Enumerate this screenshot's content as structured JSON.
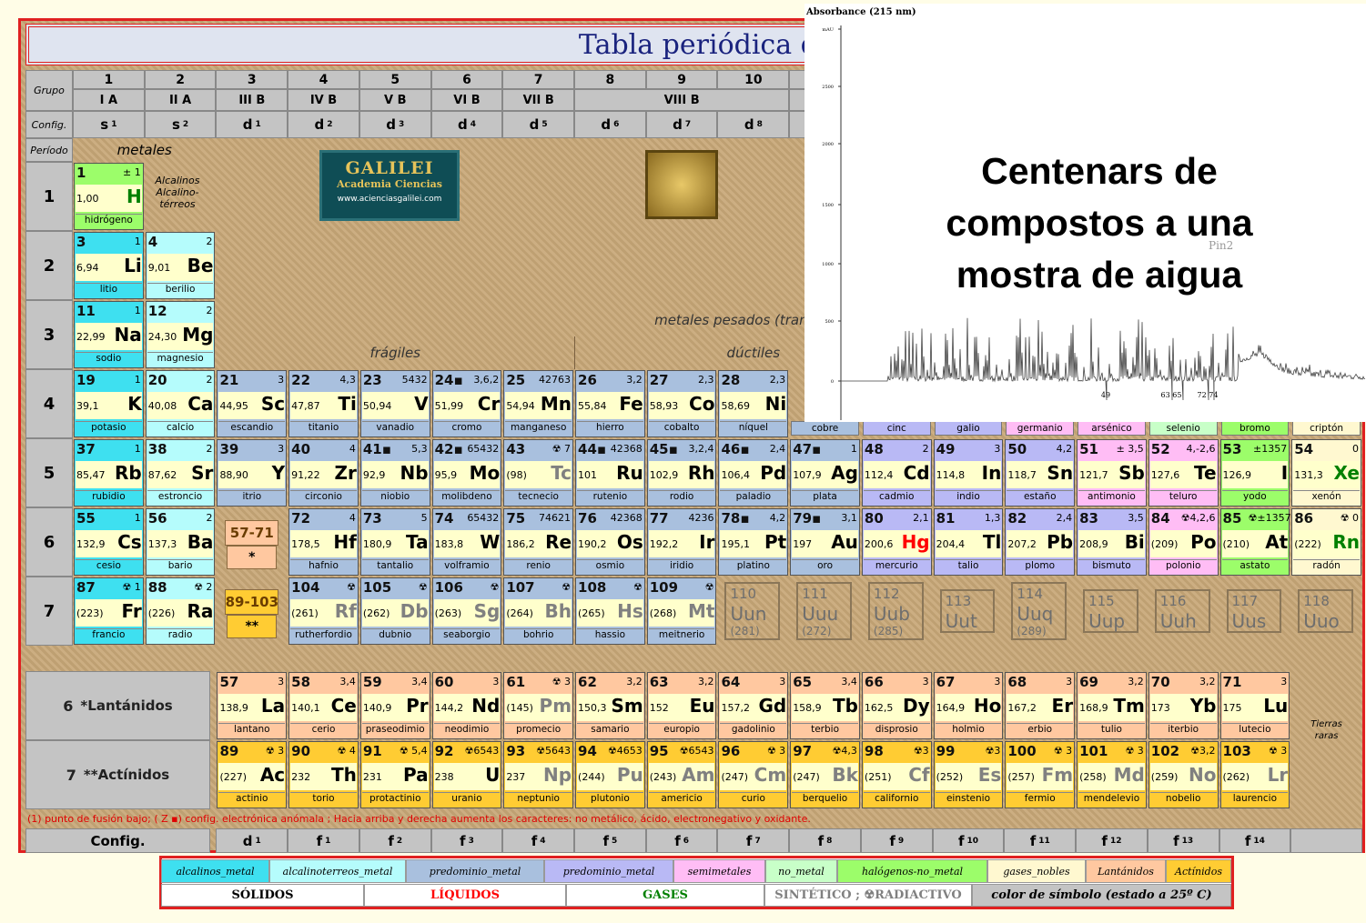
{
  "title": "Tabla periódica de los el",
  "header": {
    "grupo": "Grupo",
    "config": "Config.",
    "periodo": "Período",
    "metales": "metales",
    "groups": [
      1,
      2,
      3,
      4,
      5,
      6,
      7,
      8,
      9,
      10
    ],
    "subgroups": [
      "I A",
      "II A",
      "III B",
      "IV B",
      "V B",
      "VI B",
      "VII B",
      "VIII B"
    ],
    "configs": [
      {
        "l": "s",
        "e": "1"
      },
      {
        "l": "s",
        "e": "2"
      },
      {
        "l": "d",
        "e": "1"
      },
      {
        "l": "d",
        "e": "2"
      },
      {
        "l": "d",
        "e": "3"
      },
      {
        "l": "d",
        "e": "4"
      },
      {
        "l": "d",
        "e": "5"
      },
      {
        "l": "d",
        "e": "6"
      },
      {
        "l": "d",
        "e": "7"
      },
      {
        "l": "d",
        "e": "8"
      }
    ]
  },
  "notes": {
    "alcalinos": [
      "Alcalinos",
      "Alcalino-",
      "térreos"
    ],
    "heavy": "metales pesados (transición)",
    "fragiles": "frágiles",
    "ductiles": "dúctiles",
    "tierras": [
      "Tierras",
      "raras"
    ]
  },
  "logo": {
    "name": "GALILEI",
    "subtitle": "Academia Ciencias",
    "url": "www.acienciasgalilei.com"
  },
  "periods": [
    {
      "label": "1",
      "cells": [
        {
          "z": "1",
          "v": "± 1",
          "m": "1,00",
          "s": "H",
          "n": "hidrógeno",
          "c": 6,
          "st": 2
        }
      ]
    },
    {
      "label": "2",
      "cells": [
        {
          "z": "3",
          "v": "1",
          "m": "6,94",
          "s": "Li",
          "n": "litio",
          "c": 0
        },
        {
          "z": "4",
          "v": "2",
          "m": "9,01",
          "s": "Be",
          "n": "berilio",
          "c": 1
        }
      ]
    },
    {
      "label": "3",
      "cells": [
        {
          "z": "11",
          "v": "1",
          "m": "22,99",
          "s": "Na",
          "n": "sodio",
          "c": 0
        },
        {
          "z": "12",
          "v": "2",
          "m": "24,30",
          "s": "Mg",
          "n": "magnesio",
          "c": 1
        }
      ]
    },
    {
      "label": "4",
      "cells": [
        {
          "z": "19",
          "v": "1",
          "m": "39,1",
          "s": "K",
          "n": "potasio",
          "c": 0
        },
        {
          "z": "20",
          "v": "2",
          "m": "40,08",
          "s": "Ca",
          "n": "calcio",
          "c": 1
        },
        {
          "z": "21",
          "v": "3",
          "m": "44,95",
          "s": "Sc",
          "n": "escandio",
          "c": 2
        },
        {
          "z": "22",
          "v": "4,3",
          "m": "47,87",
          "s": "Ti",
          "n": "titanio",
          "c": 2
        },
        {
          "z": "23",
          "v": "5432",
          "m": "50,94",
          "s": "V",
          "n": "vanadio",
          "c": 2
        },
        {
          "z": "24▪",
          "v": "3,6,2",
          "m": "51,99",
          "s": "Cr",
          "n": "cromo",
          "c": 2
        },
        {
          "z": "25",
          "v": "42763",
          "m": "54,94",
          "s": "Mn",
          "n": "manganeso",
          "c": 2
        },
        {
          "z": "26",
          "v": "3,2",
          "m": "55,84",
          "s": "Fe",
          "n": "hierro",
          "c": 2
        },
        {
          "z": "27",
          "v": "2,3",
          "m": "58,93",
          "s": "Co",
          "n": "cobalto",
          "c": 2
        },
        {
          "z": "28",
          "v": "2,3",
          "m": "58,69",
          "s": "Ni",
          "n": "níquel",
          "c": 2
        },
        {
          "n": "cobre",
          "c": 2
        },
        {
          "n": "cinc",
          "c": 3
        },
        {
          "n": "galio",
          "c": 3
        },
        {
          "n": "germanio",
          "c": 4
        },
        {
          "n": "arsénico",
          "c": 4
        },
        {
          "n": "selenio",
          "c": 5
        },
        {
          "n": "bromo",
          "c": 6
        },
        {
          "n": "criptón",
          "c": 7
        }
      ]
    },
    {
      "label": "5",
      "cells": [
        {
          "z": "37",
          "v": "1",
          "m": "85,47",
          "s": "Rb",
          "n": "rubidio",
          "c": 0
        },
        {
          "z": "38",
          "v": "2",
          "m": "87,62",
          "s": "Sr",
          "n": "estroncio",
          "c": 1
        },
        {
          "z": "39",
          "v": "3",
          "m": "88,90",
          "s": "Y",
          "n": "itrio",
          "c": 2
        },
        {
          "z": "40",
          "v": "4",
          "m": "91,22",
          "s": "Zr",
          "n": "circonio",
          "c": 2
        },
        {
          "z": "41▪",
          "v": "5,3",
          "m": "92,9",
          "s": "Nb",
          "n": "niobio",
          "c": 2
        },
        {
          "z": "42▪",
          "v": "65432",
          "m": "95,9",
          "s": "Mo",
          "n": "molibdeno",
          "c": 2
        },
        {
          "z": "43",
          "v": "☢ 7",
          "m": "(98)",
          "s": "Tc",
          "n": "tecnecio",
          "c": 2,
          "st": 3
        },
        {
          "z": "44▪",
          "v": "42368",
          "m": "101",
          "s": "Ru",
          "n": "rutenio",
          "c": 2
        },
        {
          "z": "45▪",
          "v": "3,2,4",
          "m": "102,9",
          "s": "Rh",
          "n": "rodio",
          "c": 2
        },
        {
          "z": "46▪",
          "v": "2,4",
          "m": "106,4",
          "s": "Pd",
          "n": "paladio",
          "c": 2
        },
        {
          "z": "47▪",
          "v": "1",
          "m": "107,9",
          "s": "Ag",
          "n": "plata",
          "c": 2
        },
        {
          "z": "48",
          "v": "2",
          "m": "112,4",
          "s": "Cd",
          "n": "cadmio",
          "c": 3
        },
        {
          "z": "49",
          "v": "3",
          "m": "114,8",
          "s": "In",
          "n": "indio",
          "c": 3
        },
        {
          "z": "50",
          "v": "4,2",
          "m": "118,7",
          "s": "Sn",
          "n": "estaño",
          "c": 3
        },
        {
          "z": "51",
          "v": "± 3,5",
          "m": "121,7",
          "s": "Sb",
          "n": "antimonio",
          "c": 4
        },
        {
          "z": "52",
          "v": "4,-2,6",
          "m": "127,6",
          "s": "Te",
          "n": "teluro",
          "c": 4
        },
        {
          "z": "53",
          "v": "±1357",
          "m": "126,9",
          "s": "I",
          "n": "yodo",
          "c": 6
        },
        {
          "z": "54",
          "v": "0",
          "m": "131,3",
          "s": "Xe",
          "n": "xenón",
          "c": 7,
          "st": 2
        }
      ]
    },
    {
      "label": "6",
      "cells": [
        {
          "z": "55",
          "v": "1",
          "m": "132,9",
          "s": "Cs",
          "n": "cesio",
          "c": 0
        },
        {
          "z": "56",
          "v": "2",
          "m": "137,3",
          "s": "Ba",
          "n": "bario",
          "c": 1
        },
        {
          "range": "57-71",
          "mark": "*"
        },
        {
          "z": "72",
          "v": "4",
          "m": "178,5",
          "s": "Hf",
          "n": "hafnio",
          "c": 2
        },
        {
          "z": "73",
          "v": "5",
          "m": "180,9",
          "s": "Ta",
          "n": "tantalio",
          "c": 2
        },
        {
          "z": "74",
          "v": "65432",
          "m": "183,8",
          "s": "W",
          "n": "volframio",
          "c": 2
        },
        {
          "z": "75",
          "v": "74621",
          "m": "186,2",
          "s": "Re",
          "n": "renio",
          "c": 2
        },
        {
          "z": "76",
          "v": "42368",
          "m": "190,2",
          "s": "Os",
          "n": "osmio",
          "c": 2
        },
        {
          "z": "77",
          "v": "4236",
          "m": "192,2",
          "s": "Ir",
          "n": "iridio",
          "c": 2
        },
        {
          "z": "78▪",
          "v": "4,2",
          "m": "195,1",
          "s": "Pt",
          "n": "platino",
          "c": 2
        },
        {
          "z": "79▪",
          "v": "3,1",
          "m": "197",
          "s": "Au",
          "n": "oro",
          "c": 2
        },
        {
          "z": "80",
          "v": "2,1",
          "m": "200,6",
          "s": "Hg",
          "n": "mercurio",
          "c": 3,
          "st": 1
        },
        {
          "z": "81",
          "v": "1,3",
          "m": "204,4",
          "s": "Tl",
          "n": "talio",
          "c": 3
        },
        {
          "z": "82",
          "v": "2,4",
          "m": "207,2",
          "s": "Pb",
          "n": "plomo",
          "c": 3
        },
        {
          "z": "83",
          "v": "3,5",
          "m": "208,9",
          "s": "Bi",
          "n": "bismuto",
          "c": 3
        },
        {
          "z": "84",
          "v": "☢4,2,6",
          "m": "(209)",
          "s": "Po",
          "n": "polonio",
          "c": 4
        },
        {
          "z": "85",
          "v": "☢±1357",
          "m": "(210)",
          "s": "At",
          "n": "astato",
          "c": 6
        },
        {
          "z": "86",
          "v": "☢ 0",
          "m": "(222)",
          "s": "Rn",
          "n": "radón",
          "c": 7,
          "st": 2
        }
      ]
    },
    {
      "label": "7",
      "cells": [
        {
          "z": "87",
          "v": "☢ 1",
          "m": "(223)",
          "s": "Fr",
          "n": "francio",
          "c": 0
        },
        {
          "z": "88",
          "v": "☢ 2",
          "m": "(226)",
          "s": "Ra",
          "n": "radio",
          "c": 1
        },
        {
          "range": "89-103",
          "mark": "**"
        },
        {
          "z": "104",
          "v": "☢",
          "m": "(261)",
          "s": "Rf",
          "n": "rutherfordio",
          "c": 2,
          "st": 3
        },
        {
          "z": "105",
          "v": "☢",
          "m": "(262)",
          "s": "Db",
          "n": "dubnio",
          "c": 2,
          "st": 3
        },
        {
          "z": "106",
          "v": "☢",
          "m": "(263)",
          "s": "Sg",
          "n": "seaborgio",
          "c": 2,
          "st": 3
        },
        {
          "z": "107",
          "v": "☢",
          "m": "(264)",
          "s": "Bh",
          "n": "bohrio",
          "c": 2,
          "st": 3
        },
        {
          "z": "108",
          "v": "☢",
          "m": "(265)",
          "s": "Hs",
          "n": "hassio",
          "c": 2,
          "st": 3
        },
        {
          "z": "109",
          "v": "☢",
          "m": "(268)",
          "s": "Mt",
          "n": "meitnerio",
          "c": 2,
          "st": 3
        },
        {
          "z": "110",
          "s": "Uun",
          "m": "(281)"
        },
        {
          "z": "111",
          "s": "Uuu",
          "m": "(272)"
        },
        {
          "z": "112",
          "s": "Uub",
          "m": "(285)"
        },
        {
          "z": "113",
          "s": "Uut"
        },
        {
          "z": "114",
          "s": "Uuq",
          "m": "(289)"
        },
        {
          "z": "115",
          "s": "Uup"
        },
        {
          "z": "116",
          "s": "Uuh"
        },
        {
          "z": "117",
          "s": "Uus"
        },
        {
          "z": "118",
          "s": "Uuo"
        }
      ]
    }
  ],
  "series": [
    {
      "num": "6",
      "label": "*Lantánidos",
      "cells": [
        {
          "z": "57",
          "v": "3",
          "m": "138,9",
          "s": "La",
          "n": "lantano",
          "c": 8
        },
        {
          "z": "58",
          "v": "3,4",
          "m": "140,1",
          "s": "Ce",
          "n": "cerio",
          "c": 8
        },
        {
          "z": "59",
          "v": "3,4",
          "m": "140,9",
          "s": "Pr",
          "n": "praseodimio",
          "c": 8
        },
        {
          "z": "60",
          "v": "3",
          "m": "144,2",
          "s": "Nd",
          "n": "neodimio",
          "c": 8
        },
        {
          "z": "61",
          "v": "☢ 3",
          "m": "(145)",
          "s": "Pm",
          "n": "promecio",
          "c": 8,
          "st": 3
        },
        {
          "z": "62",
          "v": "3,2",
          "m": "150,3",
          "s": "Sm",
          "n": "samario",
          "c": 8
        },
        {
          "z": "63",
          "v": "3,2",
          "m": "152",
          "s": "Eu",
          "n": "europio",
          "c": 8
        },
        {
          "z": "64",
          "v": "3",
          "m": "157,2",
          "s": "Gd",
          "n": "gadolinio",
          "c": 8
        },
        {
          "z": "65",
          "v": "3,4",
          "m": "158,9",
          "s": "Tb",
          "n": "terbio",
          "c": 8
        },
        {
          "z": "66",
          "v": "3",
          "m": "162,5",
          "s": "Dy",
          "n": "disprosio",
          "c": 8
        },
        {
          "z": "67",
          "v": "3",
          "m": "164,9",
          "s": "Ho",
          "n": "holmio",
          "c": 8
        },
        {
          "z": "68",
          "v": "3",
          "m": "167,2",
          "s": "Er",
          "n": "erbio",
          "c": 8
        },
        {
          "z": "69",
          "v": "3,2",
          "m": "168,9",
          "s": "Tm",
          "n": "tulio",
          "c": 8
        },
        {
          "z": "70",
          "v": "3,2",
          "m": "173",
          "s": "Yb",
          "n": "iterbio",
          "c": 8
        },
        {
          "z": "71",
          "v": "3",
          "m": "175",
          "s": "Lu",
          "n": "lutecio",
          "c": 8
        }
      ]
    },
    {
      "num": "7",
      "label": "**Actínidos",
      "cells": [
        {
          "z": "89",
          "v": "☢ 3",
          "m": "(227)",
          "s": "Ac",
          "n": "actinio",
          "c": 9
        },
        {
          "z": "90",
          "v": "☢ 4",
          "m": "232",
          "s": "Th",
          "n": "torio",
          "c": 9
        },
        {
          "z": "91",
          "v": "☢ 5,4",
          "m": "231",
          "s": "Pa",
          "n": "protactinio",
          "c": 9
        },
        {
          "z": "92",
          "v": "☢6543",
          "m": "238",
          "s": "U",
          "n": "uranio",
          "c": 9
        },
        {
          "z": "93",
          "v": "☢5643",
          "m": "237",
          "s": "Np",
          "n": "neptunio",
          "c": 9,
          "st": 3
        },
        {
          "z": "94",
          "v": "☢4653",
          "m": "(244)",
          "s": "Pu",
          "n": "plutonio",
          "c": 9,
          "st": 3
        },
        {
          "z": "95",
          "v": "☢6543",
          "m": "(243)",
          "s": "Am",
          "n": "americio",
          "c": 9,
          "st": 3
        },
        {
          "z": "96",
          "v": "☢ 3",
          "m": "(247)",
          "s": "Cm",
          "n": "curio",
          "c": 9,
          "st": 3
        },
        {
          "z": "97",
          "v": "☢4,3",
          "m": "(247)",
          "s": "Bk",
          "n": "berquelio",
          "c": 9,
          "st": 3
        },
        {
          "z": "98",
          "v": "☢3",
          "m": "(251)",
          "s": "Cf",
          "n": "californio",
          "c": 9,
          "st": 3
        },
        {
          "z": "99",
          "v": "☢3",
          "m": "(252)",
          "s": "Es",
          "n": "einstenio",
          "c": 9,
          "st": 3
        },
        {
          "z": "100",
          "v": "☢ 3",
          "m": "(257)",
          "s": "Fm",
          "n": "fermio",
          "c": 9,
          "st": 3
        },
        {
          "z": "101",
          "v": "☢ 3",
          "m": "(258)",
          "s": "Md",
          "n": "mendelevio",
          "c": 9,
          "st": 3
        },
        {
          "z": "102",
          "v": "☢3,2",
          "m": "(259)",
          "s": "No",
          "n": "nobelio",
          "c": 9,
          "st": 3
        },
        {
          "z": "103",
          "v": "☢ 3",
          "m": "(262)",
          "s": "Lr",
          "n": "laurencio",
          "c": 9,
          "st": 3
        }
      ]
    }
  ],
  "footnote": "(1) punto de fusión bajo; ( Z ▪) config. electrónica anómala ; Hacia arriba y derecha aumenta los caracteres: no metálico, ácido, electronegativo y oxidante.",
  "bottom_config": {
    "label": "Config.",
    "items": [
      {
        "l": "d",
        "e": "1"
      },
      {
        "l": "f",
        "e": "1"
      },
      {
        "l": "f",
        "e": "2"
      },
      {
        "l": "f",
        "e": "3"
      },
      {
        "l": "f",
        "e": "4"
      },
      {
        "l": "f",
        "e": "5"
      },
      {
        "l": "f",
        "e": "6"
      },
      {
        "l": "f",
        "e": "7"
      },
      {
        "l": "f",
        "e": "8"
      },
      {
        "l": "f",
        "e": "9"
      },
      {
        "l": "f",
        "e": "10"
      },
      {
        "l": "f",
        "e": "11"
      },
      {
        "l": "f",
        "e": "12"
      },
      {
        "l": "f",
        "e": "13"
      },
      {
        "l": "f",
        "e": "14"
      }
    ]
  },
  "legend": {
    "categories": [
      {
        "label": "alcalinos_metal",
        "color": "#3ee0f0"
      },
      {
        "label": "alcalinoterreos_metal",
        "color": "#b5fcfc"
      },
      {
        "label": "predominio_metal",
        "color": "#a9c0de"
      },
      {
        "label": "predominio_metal",
        "color": "#b9b9f5"
      },
      {
        "label": "semimetales",
        "color": "#ffbdf5"
      },
      {
        "label": "no_metal",
        "color": "#c8ffc8"
      },
      {
        "label": "halógenos-no_metal",
        "color": "#9cfd6a"
      },
      {
        "label": "gases_nobles",
        "color": "#fff8d0"
      },
      {
        "label": "Lantánidos",
        "color": "#ffc8a0"
      },
      {
        "label": "Actínidos",
        "color": "#ffcc33"
      }
    ],
    "states": [
      {
        "label": "SÓLIDOS",
        "color": "#000000"
      },
      {
        "label": "LÍQUIDOS",
        "color": "#ff0000"
      },
      {
        "label": "GASES",
        "color": "#008000"
      },
      {
        "label": "SINTÉTICO ; ☢RADIACTIVO",
        "color": "#808080"
      }
    ],
    "key": "color de símbolo (estado a 25º C)"
  },
  "overlay": {
    "title": "Absorbance (215 nm)",
    "yticks": [
      "mAU",
      "2500",
      "2000",
      "1500",
      "1000",
      "500",
      "0"
    ],
    "peaks": [
      "49",
      "63 65",
      "72 74"
    ],
    "trace": "Pin2",
    "caption": [
      "Centenars de",
      "compostos a una",
      "mostra de aigua"
    ]
  }
}
